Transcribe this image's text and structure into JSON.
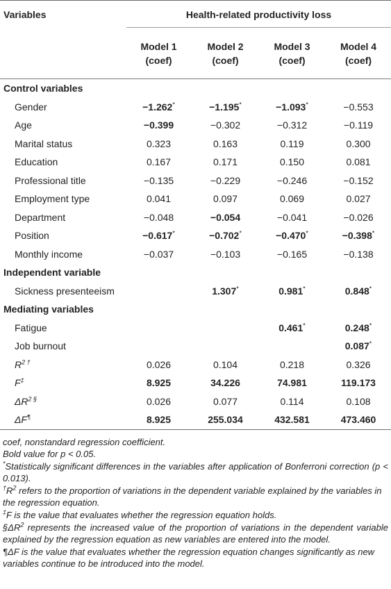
{
  "header": {
    "variables_label": "Variables",
    "span_label": "Health-related productivity loss",
    "models": [
      {
        "name": "Model 1",
        "sub": "(coef)"
      },
      {
        "name": "Model 2",
        "sub": "(coef)"
      },
      {
        "name": "Model 3",
        "sub": "(coef)"
      },
      {
        "name": "Model 4",
        "sub": "(coef)"
      }
    ]
  },
  "rows": [
    {
      "type": "group",
      "label": "Control variables"
    },
    {
      "type": "item",
      "label": "Gender",
      "cells": [
        {
          "v": "−1.262",
          "b": true,
          "sup": "*"
        },
        {
          "v": "−1.195",
          "b": true,
          "sup": "*"
        },
        {
          "v": "−1.093",
          "b": true,
          "sup": "*"
        },
        {
          "v": "−0.553"
        }
      ]
    },
    {
      "type": "item",
      "label": "Age",
      "cells": [
        {
          "v": "−0.399",
          "b": true
        },
        {
          "v": "−0.302"
        },
        {
          "v": "−0.312"
        },
        {
          "v": "−0.119"
        }
      ]
    },
    {
      "type": "item",
      "label": "Marital status",
      "cells": [
        {
          "v": "0.323"
        },
        {
          "v": "0.163"
        },
        {
          "v": "0.119"
        },
        {
          "v": "0.300"
        }
      ]
    },
    {
      "type": "item",
      "label": "Education",
      "cells": [
        {
          "v": "0.167"
        },
        {
          "v": "0.171"
        },
        {
          "v": "0.150"
        },
        {
          "v": "0.081"
        }
      ]
    },
    {
      "type": "item",
      "label": "Professional title",
      "cells": [
        {
          "v": "−0.135"
        },
        {
          "v": "−0.229"
        },
        {
          "v": "−0.246"
        },
        {
          "v": "−0.152"
        }
      ]
    },
    {
      "type": "item",
      "label": "Employment type",
      "cells": [
        {
          "v": "0.041"
        },
        {
          "v": "0.097"
        },
        {
          "v": "0.069"
        },
        {
          "v": "0.027"
        }
      ]
    },
    {
      "type": "item",
      "label": "Department",
      "cells": [
        {
          "v": "−0.048"
        },
        {
          "v": "−0.054",
          "b": true
        },
        {
          "v": "−0.041"
        },
        {
          "v": "−0.026"
        }
      ]
    },
    {
      "type": "item",
      "label": "Position",
      "cells": [
        {
          "v": "−0.617",
          "b": true,
          "sup": "*"
        },
        {
          "v": "−0.702",
          "b": true,
          "sup": "*"
        },
        {
          "v": "−0.470",
          "b": true,
          "sup": "*"
        },
        {
          "v": "−0.398",
          "b": true,
          "sup": "*"
        }
      ]
    },
    {
      "type": "item",
      "label": "Monthly income",
      "cells": [
        {
          "v": "−0.037"
        },
        {
          "v": "−0.103"
        },
        {
          "v": "−0.165"
        },
        {
          "v": "−0.138"
        }
      ]
    },
    {
      "type": "group",
      "label": "Independent variable"
    },
    {
      "type": "item",
      "label": "Sickness presenteeism",
      "cells": [
        {
          "v": ""
        },
        {
          "v": "1.307",
          "b": true,
          "sup": "*"
        },
        {
          "v": "0.981",
          "b": true,
          "sup": "*"
        },
        {
          "v": "0.848",
          "b": true,
          "sup": "*"
        }
      ]
    },
    {
      "type": "group",
      "label": "Mediating variables"
    },
    {
      "type": "item",
      "label": "Fatigue",
      "cells": [
        {
          "v": ""
        },
        {
          "v": ""
        },
        {
          "v": "0.461",
          "b": true,
          "sup": "*"
        },
        {
          "v": "0.248",
          "b": true,
          "sup": "*"
        }
      ]
    },
    {
      "type": "item",
      "label": "Job burnout",
      "cells": [
        {
          "v": ""
        },
        {
          "v": ""
        },
        {
          "v": ""
        },
        {
          "v": "0.087",
          "b": true,
          "sup": "*"
        }
      ]
    },
    {
      "type": "stat",
      "label": "R",
      "label_sup": "2 †",
      "cells": [
        {
          "v": "0.026"
        },
        {
          "v": "0.104"
        },
        {
          "v": "0.218"
        },
        {
          "v": "0.326"
        }
      ]
    },
    {
      "type": "stat",
      "label": "F",
      "label_sup": "‡",
      "cells": [
        {
          "v": "8.925",
          "b": true
        },
        {
          "v": "34.226",
          "b": true
        },
        {
          "v": "74.981",
          "b": true
        },
        {
          "v": "119.173",
          "b": true
        }
      ]
    },
    {
      "type": "stat",
      "label": "ΔR",
      "label_sup": "2 §",
      "cells": [
        {
          "v": "0.026"
        },
        {
          "v": "0.077"
        },
        {
          "v": "0.114"
        },
        {
          "v": "0.108"
        }
      ]
    },
    {
      "type": "stat",
      "label": "ΔF",
      "label_sup": "¶",
      "cells": [
        {
          "v": "8.925",
          "b": true
        },
        {
          "v": "255.034",
          "b": true
        },
        {
          "v": "432.581",
          "b": true
        },
        {
          "v": "473.460",
          "b": true
        }
      ]
    }
  ],
  "notes": {
    "coef": "coef, nonstandard regression coefficient.",
    "bold": "Bold value for p < 0.05.",
    "star_mark": "*",
    "star": "Statistically significant differences in the variables after application of Bonferroni correction (p < 0.013).",
    "dagger_mark": "†",
    "dagger_sym": "R",
    "dagger_sup": "2",
    "dagger": " refers to the proportion of variations in the dependent variable explained by the variables in the regression equation.",
    "ddagger_mark": "‡",
    "ddagger_sym": "F",
    "ddagger": " is the value that evaluates whether the regression equation holds.",
    "section_mark": "§",
    "section_sym": "ΔR",
    "section_sup": "2",
    "section": " represents the increased value of the proportion of variations in the dependent variable explained by the regression equation as new variables are entered into the model.",
    "pilcrow_mark": "¶",
    "pilcrow_sym": "ΔF",
    "pilcrow": " is the value that evaluates whether the regression equation changes significantly as new variables continue to be introduced into the model."
  }
}
